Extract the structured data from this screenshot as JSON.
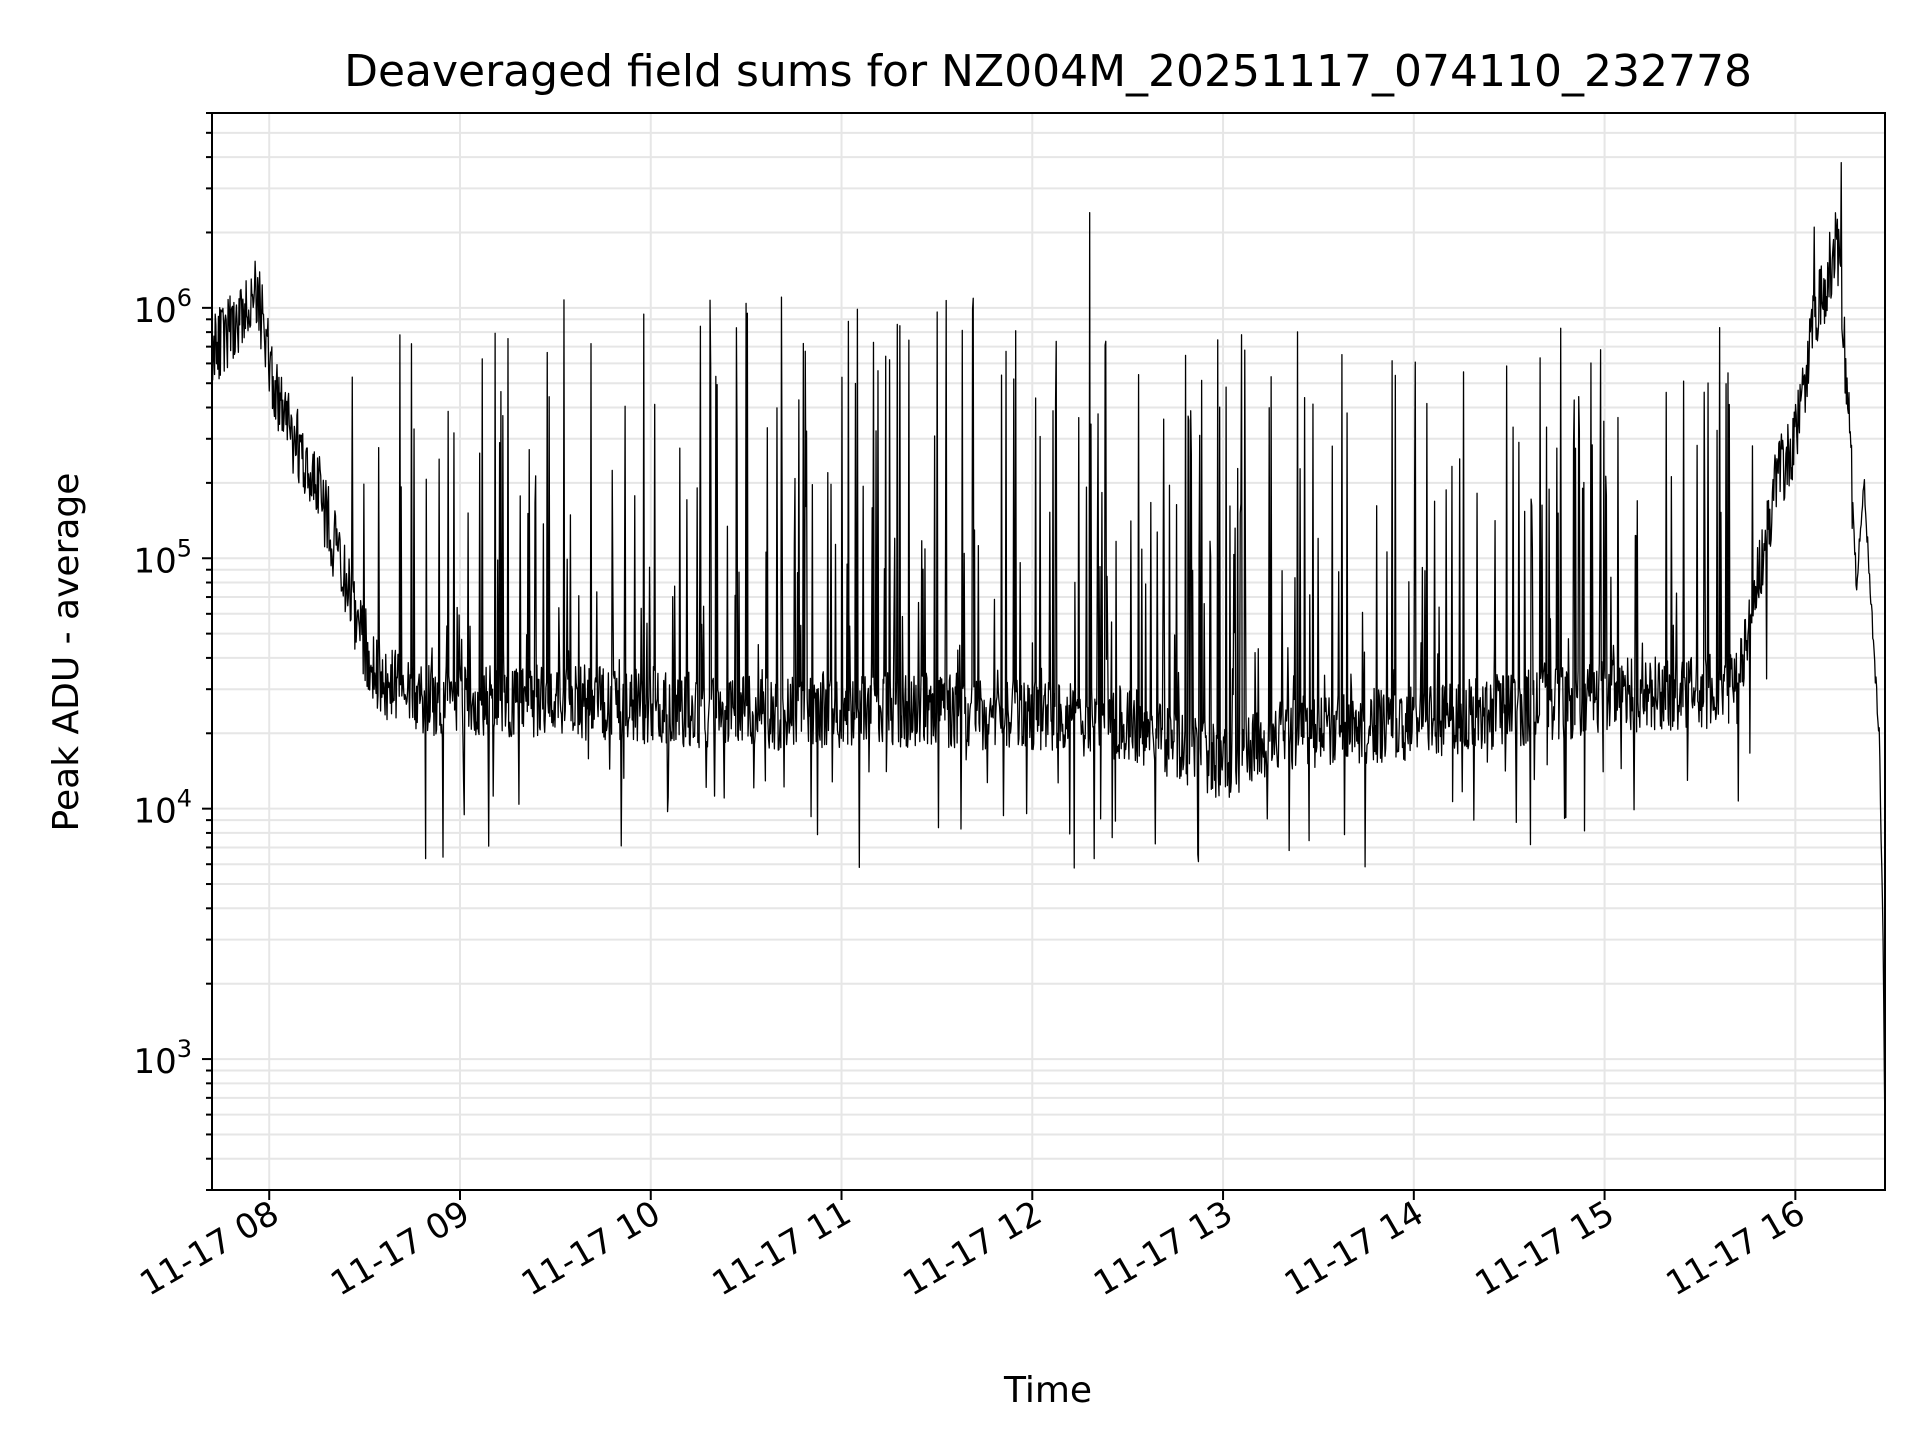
{
  "chart_data": {
    "type": "line",
    "title": "Deaveraged field sums for NZ004M_20251117_074110_232778",
    "xlabel": "Time",
    "ylabel": "Peak ADU - average",
    "yscale": "log",
    "ylim": [
      300,
      6000000
    ],
    "xlim_hours": [
      7.7,
      16.47
    ],
    "grid": true,
    "line_color": "#000000",
    "x_ticks": [
      {
        "hour": 8,
        "label": "11-17 08"
      },
      {
        "hour": 9,
        "label": "11-17 09"
      },
      {
        "hour": 10,
        "label": "11-17 10"
      },
      {
        "hour": 11,
        "label": "11-17 11"
      },
      {
        "hour": 12,
        "label": "11-17 12"
      },
      {
        "hour": 13,
        "label": "11-17 13"
      },
      {
        "hour": 14,
        "label": "11-17 14"
      },
      {
        "hour": 15,
        "label": "11-17 15"
      },
      {
        "hour": 16,
        "label": "11-17 16"
      }
    ],
    "y_ticks": [
      {
        "value": 1000,
        "base": "10",
        "exp": "3"
      },
      {
        "value": 10000,
        "base": "10",
        "exp": "4"
      },
      {
        "value": 100000,
        "base": "10",
        "exp": "5"
      },
      {
        "value": 1000000,
        "base": "10",
        "exp": "6"
      }
    ],
    "series_description": "High-frequency noisy time series (single black line)",
    "baseline_envelope": [
      {
        "hour": 7.7,
        "value": 650000
      },
      {
        "hour": 7.85,
        "value": 900000
      },
      {
        "hour": 7.93,
        "value": 1200000
      },
      {
        "hour": 8.05,
        "value": 400000
      },
      {
        "hour": 8.25,
        "value": 200000
      },
      {
        "hour": 8.4,
        "value": 80000
      },
      {
        "hour": 8.55,
        "value": 35000
      },
      {
        "hour": 8.8,
        "value": 27000
      },
      {
        "hour": 9.5,
        "value": 27000
      },
      {
        "hour": 10.5,
        "value": 24000
      },
      {
        "hour": 11.5,
        "value": 25000
      },
      {
        "hour": 12.5,
        "value": 22000
      },
      {
        "hour": 13.0,
        "value": 15000
      },
      {
        "hour": 13.3,
        "value": 20000
      },
      {
        "hour": 14.0,
        "value": 22000
      },
      {
        "hour": 15.0,
        "value": 28000
      },
      {
        "hour": 15.7,
        "value": 30000
      },
      {
        "hour": 15.9,
        "value": 200000
      },
      {
        "hour": 16.0,
        "value": 300000
      },
      {
        "hour": 16.1,
        "value": 900000
      },
      {
        "hour": 16.22,
        "value": 1800000
      },
      {
        "hour": 16.27,
        "value": 500000
      },
      {
        "hour": 16.32,
        "value": 80000
      },
      {
        "hour": 16.36,
        "value": 200000
      },
      {
        "hour": 16.4,
        "value": 60000
      },
      {
        "hour": 16.44,
        "value": 20000
      },
      {
        "hour": 16.46,
        "value": 3000
      },
      {
        "hour": 16.47,
        "value": 450
      }
    ],
    "notable_peaks": [
      {
        "hour": 12.3,
        "value": 2400000
      },
      {
        "hour": 16.24,
        "value": 3800000
      },
      {
        "hour": 16.1,
        "value": 2100000
      }
    ]
  }
}
